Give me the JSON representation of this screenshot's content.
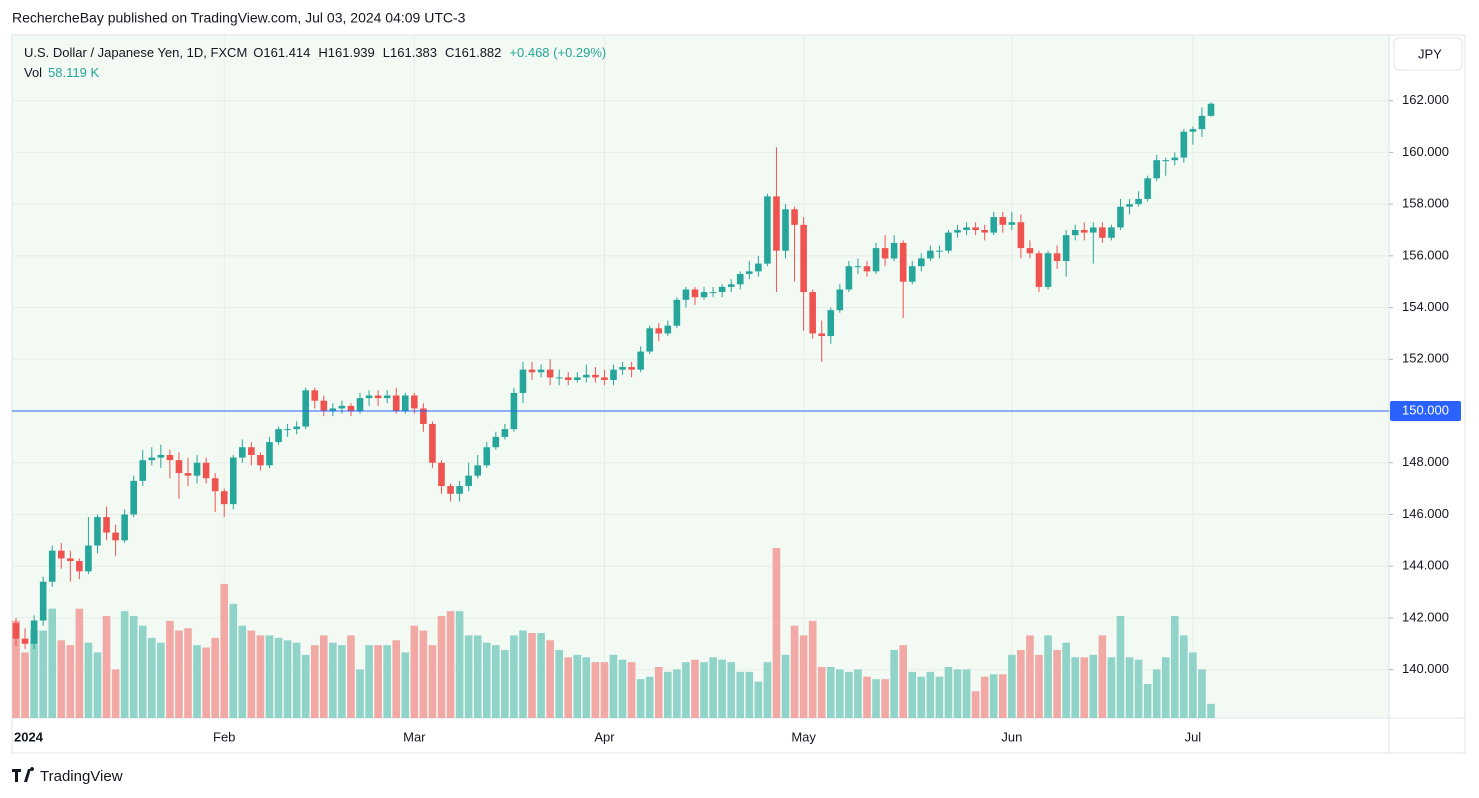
{
  "header": {
    "published": "RechercheBay published on TradingView.com, Jul 03, 2024 04:09 UTC-3",
    "symbol": "U.S. Dollar / Japanese Yen, 1D, FXCM",
    "open": "O161.414",
    "high": "H161.939",
    "low": "L161.383",
    "close": "C161.882",
    "change": "+0.468 (+0.29%)",
    "vol_name": "Vol",
    "vol_label": "58.119 K",
    "currency": "JPY",
    "brand": "TradingView"
  },
  "chart_data": {
    "type": "candlestick",
    "categories": [
      "2024",
      null,
      null,
      null,
      null,
      null,
      null,
      null,
      null,
      null,
      null,
      null,
      null,
      null,
      null,
      null,
      null,
      null,
      null,
      null,
      null,
      null,
      null,
      "Feb",
      null,
      null,
      null,
      null,
      null,
      null,
      null,
      null,
      null,
      null,
      null,
      null,
      null,
      null,
      null,
      null,
      null,
      null,
      null,
      null,
      "Mar",
      null,
      null,
      null,
      null,
      null,
      null,
      null,
      null,
      null,
      null,
      null,
      null,
      null,
      null,
      null,
      null,
      null,
      null,
      null,
      null,
      "Apr",
      null,
      null,
      null,
      null,
      null,
      null,
      null,
      null,
      null,
      null,
      null,
      null,
      null,
      null,
      null,
      null,
      null,
      null,
      null,
      null,
      null,
      "May",
      null,
      null,
      null,
      null,
      null,
      null,
      null,
      null,
      null,
      null,
      null,
      null,
      null,
      null,
      null,
      null,
      null,
      null,
      null,
      null,
      null,
      null,
      "Jun",
      null,
      null,
      null,
      null,
      null,
      null,
      null,
      null,
      null,
      null,
      null,
      null,
      null,
      null,
      null,
      null,
      null,
      null,
      null,
      "Jul",
      null,
      null
    ],
    "open": [
      141.8,
      141.2,
      141.0,
      141.9,
      143.4,
      144.6,
      144.3,
      144.2,
      143.8,
      144.8,
      145.9,
      145.3,
      145.0,
      146.0,
      147.3,
      148.1,
      148.2,
      148.3,
      148.1,
      147.6,
      147.5,
      148.0,
      147.4,
      146.9,
      146.4,
      148.2,
      148.6,
      148.3,
      147.9,
      148.8,
      149.3,
      149.3,
      149.4,
      150.8,
      150.4,
      150.0,
      150.1,
      150.2,
      150.0,
      150.5,
      150.6,
      150.5,
      150.6,
      150.0,
      150.6,
      150.1,
      149.5,
      148.0,
      147.1,
      146.8,
      147.1,
      147.5,
      147.9,
      148.6,
      149.0,
      149.3,
      150.7,
      151.6,
      151.5,
      151.6,
      151.3,
      151.3,
      151.2,
      151.3,
      151.4,
      151.3,
      151.2,
      151.6,
      151.7,
      151.6,
      152.3,
      153.2,
      153.0,
      153.3,
      154.3,
      154.7,
      154.4,
      154.6,
      154.6,
      154.8,
      154.9,
      155.3,
      155.4,
      155.7,
      158.3,
      156.2,
      157.8,
      157.2,
      154.6,
      153.0,
      152.9,
      153.9,
      154.7,
      155.6,
      155.6,
      155.4,
      156.3,
      155.9,
      156.5,
      155.0,
      155.6,
      155.9,
      156.2,
      156.2,
      156.9,
      157.0,
      157.1,
      157.0,
      156.9,
      157.5,
      157.2,
      157.3,
      156.3,
      156.1,
      154.8,
      156.1,
      155.8,
      156.8,
      157.0,
      156.9,
      157.1,
      156.7,
      157.1,
      157.9,
      158.0,
      158.2,
      159.0,
      159.7,
      159.7,
      159.8,
      160.8,
      160.9,
      161.414
    ],
    "high": [
      142.0,
      141.6,
      142.1,
      143.6,
      144.8,
      144.9,
      144.6,
      144.3,
      145.9,
      146.0,
      146.3,
      145.6,
      146.2,
      147.5,
      148.5,
      148.6,
      148.7,
      148.5,
      148.4,
      148.2,
      148.3,
      148.2,
      147.6,
      147.0,
      148.3,
      148.9,
      148.8,
      148.4,
      149.0,
      149.4,
      149.5,
      149.6,
      150.9,
      150.9,
      150.6,
      150.3,
      150.4,
      150.3,
      150.7,
      150.8,
      150.8,
      150.8,
      150.9,
      150.7,
      150.7,
      150.3,
      149.6,
      148.1,
      147.2,
      147.3,
      148.0,
      148.3,
      148.8,
      149.2,
      149.5,
      150.9,
      151.9,
      151.9,
      151.8,
      152.0,
      151.6,
      151.5,
      151.5,
      151.8,
      151.7,
      151.6,
      151.8,
      151.9,
      151.9,
      152.5,
      153.3,
      153.4,
      153.5,
      154.4,
      154.8,
      154.8,
      154.8,
      154.8,
      154.9,
      155.1,
      155.4,
      155.8,
      156.0,
      158.4,
      160.2,
      158.0,
      157.9,
      157.5,
      154.7,
      153.5,
      154.0,
      154.9,
      155.8,
      155.9,
      155.8,
      156.5,
      156.8,
      156.8,
      156.6,
      155.8,
      156.1,
      156.4,
      156.4,
      157.0,
      157.2,
      157.3,
      157.3,
      157.2,
      157.7,
      157.7,
      157.7,
      157.6,
      156.6,
      156.2,
      156.2,
      156.4,
      157.0,
      157.2,
      157.3,
      157.3,
      157.3,
      157.2,
      158.2,
      158.2,
      158.5,
      159.1,
      159.9,
      159.8,
      160.0,
      160.9,
      161.0,
      161.74,
      161.939
    ],
    "low": [
      140.9,
      140.8,
      140.8,
      141.7,
      143.2,
      143.9,
      143.4,
      143.5,
      143.7,
      144.5,
      145.0,
      144.4,
      144.9,
      145.9,
      147.1,
      147.9,
      147.8,
      147.4,
      146.6,
      147.1,
      147.2,
      147.2,
      146.1,
      145.9,
      146.2,
      148.0,
      147.9,
      147.7,
      147.8,
      148.7,
      149.0,
      149.1,
      149.3,
      150.1,
      149.8,
      149.8,
      149.9,
      149.8,
      149.9,
      150.2,
      150.2,
      150.3,
      149.9,
      149.9,
      149.9,
      149.2,
      147.8,
      146.8,
      146.5,
      146.5,
      146.9,
      147.4,
      147.8,
      148.5,
      148.9,
      149.2,
      150.3,
      151.2,
      151.3,
      151.0,
      151.0,
      151.0,
      151.1,
      151.1,
      151.1,
      151.0,
      151.0,
      151.4,
      151.3,
      151.5,
      152.2,
      152.7,
      152.9,
      153.2,
      154.0,
      154.1,
      154.3,
      154.4,
      154.4,
      154.6,
      154.7,
      155.1,
      155.2,
      155.6,
      154.6,
      155.9,
      155.0,
      153.1,
      152.8,
      151.9,
      152.6,
      153.8,
      154.6,
      155.3,
      155.2,
      155.3,
      155.6,
      155.8,
      153.6,
      154.9,
      155.4,
      155.8,
      155.9,
      156.1,
      156.7,
      156.8,
      156.8,
      156.6,
      156.8,
      156.9,
      157.0,
      155.9,
      155.9,
      154.6,
      154.7,
      155.5,
      155.2,
      156.6,
      156.6,
      155.7,
      156.5,
      156.6,
      157.0,
      157.6,
      157.9,
      158.1,
      158.9,
      159.1,
      159.5,
      159.6,
      160.3,
      160.6,
      161.383
    ],
    "close": [
      141.2,
      141.0,
      141.9,
      143.4,
      144.6,
      144.3,
      144.2,
      143.8,
      144.8,
      145.9,
      145.3,
      145.0,
      146.0,
      147.3,
      148.1,
      148.2,
      148.3,
      148.1,
      147.6,
      147.5,
      148.0,
      147.4,
      146.9,
      146.4,
      148.2,
      148.6,
      148.3,
      147.9,
      148.8,
      149.3,
      149.3,
      149.4,
      150.8,
      150.4,
      150.0,
      150.1,
      150.2,
      150.0,
      150.5,
      150.6,
      150.5,
      150.6,
      150.0,
      150.6,
      150.1,
      149.5,
      148.0,
      147.1,
      146.8,
      147.1,
      147.5,
      147.9,
      148.6,
      149.0,
      149.3,
      150.7,
      151.6,
      151.5,
      151.6,
      151.3,
      151.3,
      151.2,
      151.3,
      151.4,
      151.3,
      151.2,
      151.6,
      151.7,
      151.6,
      152.3,
      153.2,
      153.0,
      153.3,
      154.3,
      154.7,
      154.4,
      154.6,
      154.6,
      154.8,
      154.9,
      155.3,
      155.4,
      155.7,
      158.3,
      156.2,
      157.8,
      157.2,
      154.6,
      153.0,
      152.9,
      153.9,
      154.7,
      155.6,
      155.6,
      155.4,
      156.3,
      155.9,
      156.5,
      155.0,
      155.6,
      155.9,
      156.2,
      156.2,
      156.9,
      157.0,
      157.1,
      157.0,
      156.9,
      157.5,
      157.2,
      157.3,
      156.3,
      156.1,
      154.8,
      156.1,
      155.8,
      156.8,
      157.0,
      156.9,
      157.1,
      156.7,
      157.1,
      157.9,
      158.0,
      158.2,
      159.0,
      159.7,
      159.7,
      159.8,
      160.8,
      160.9,
      161.414,
      161.882
    ],
    "volume": [
      400,
      270,
      360,
      360,
      450,
      320,
      300,
      450,
      310,
      270,
      420,
      200,
      440,
      420,
      380,
      330,
      310,
      400,
      360,
      370,
      300,
      290,
      330,
      552,
      470,
      380,
      360,
      340,
      340,
      330,
      320,
      310,
      260,
      300,
      340,
      310,
      300,
      340,
      200,
      300,
      300,
      300,
      320,
      270,
      380,
      360,
      300,
      420,
      440,
      440,
      340,
      340,
      310,
      300,
      280,
      340,
      360,
      350,
      350,
      320,
      280,
      250,
      260,
      250,
      230,
      230,
      260,
      240,
      230,
      160,
      170,
      210,
      190,
      200,
      230,
      240,
      230,
      250,
      240,
      230,
      190,
      190,
      150,
      230,
      700,
      260,
      380,
      340,
      400,
      210,
      210,
      200,
      190,
      200,
      170,
      160,
      160,
      280,
      300,
      190,
      170,
      190,
      170,
      210,
      200,
      200,
      110,
      170,
      180,
      180,
      260,
      280,
      340,
      260,
      340,
      280,
      310,
      250,
      250,
      260,
      340,
      250,
      420,
      250,
      240,
      140,
      200,
      250,
      420,
      340,
      270,
      200,
      58.119
    ],
    "up_color": "#26a69a",
    "down_color": "#ef5350",
    "up_volume_color": "#8fd3c9",
    "down_volume_color": "#f2a8a5",
    "ylim": [
      138.13,
      164.54
    ],
    "yticks": [
      {
        "value": 140,
        "label": "140.000"
      },
      {
        "value": 142,
        "label": "142.000"
      },
      {
        "value": 144,
        "label": "144.000"
      },
      {
        "value": 146,
        "label": "146.000"
      },
      {
        "value": 148,
        "label": "148.000"
      },
      {
        "value": 152,
        "label": "152.000"
      },
      {
        "value": 154,
        "label": "154.000"
      },
      {
        "value": 156,
        "label": "156.000"
      },
      {
        "value": 158,
        "label": "158.000"
      },
      {
        "value": 160,
        "label": "160.000"
      },
      {
        "value": 162,
        "label": "162.000"
      }
    ],
    "hline": {
      "value": 150,
      "label": "150.000",
      "color": "#2962ff"
    },
    "grid": true
  }
}
